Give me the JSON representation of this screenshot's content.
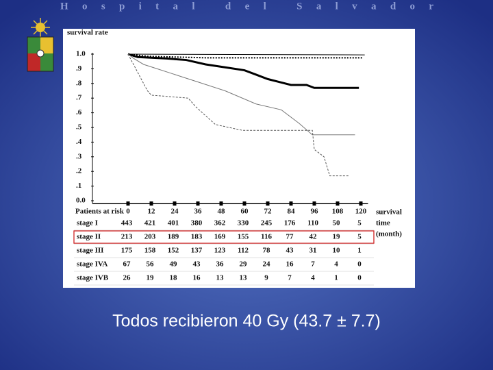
{
  "header": {
    "title": "Hospital del Salvador"
  },
  "chart_data": {
    "type": "line",
    "ylabel": "survival rate",
    "xlabel_lines": [
      "survival",
      "time",
      "(month)"
    ],
    "xlim": [
      0,
      123
    ],
    "ylim": [
      0,
      1
    ],
    "xticks": [
      0,
      12,
      24,
      36,
      48,
      60,
      72,
      84,
      96,
      108,
      120
    ],
    "yticks": [
      {
        "value": 0,
        "label": "0.0"
      },
      {
        "value": 0.1,
        "label": ".1"
      },
      {
        "value": 0.2,
        "label": ".2"
      },
      {
        "value": 0.3,
        "label": ".3"
      },
      {
        "value": 0.4,
        "label": ".4"
      },
      {
        "value": 0.5,
        "label": ".5"
      },
      {
        "value": 0.6,
        "label": ".6"
      },
      {
        "value": 0.7,
        "label": ".7"
      },
      {
        "value": 0.8,
        "label": ".8"
      },
      {
        "value": 0.9,
        "label": ".9"
      },
      {
        "value": 1,
        "label": "1.0"
      }
    ],
    "series": [
      {
        "color": "#000000",
        "style": "solid",
        "width": 1,
        "x": [
          0,
          122
        ],
        "values": [
          1,
          0.995
        ]
      },
      {
        "color": "#000000",
        "style": "dotted",
        "width": 2,
        "x": [
          0,
          10,
          40,
          121
        ],
        "values": [
          1,
          0.985,
          0.975,
          0.975
        ]
      },
      {
        "color": "#000000",
        "style": "solid",
        "width": 3,
        "x": [
          0,
          5,
          20,
          30,
          40,
          50,
          60,
          66,
          72,
          78,
          84,
          92,
          96,
          119
        ],
        "values": [
          1,
          0.98,
          0.97,
          0.96,
          0.93,
          0.91,
          0.89,
          0.86,
          0.83,
          0.81,
          0.79,
          0.79,
          0.77,
          0.77
        ]
      },
      {
        "color": "#777777",
        "style": "solid",
        "width": 1,
        "x": [
          0,
          3,
          8,
          15,
          22,
          29,
          36,
          50,
          66,
          79,
          88,
          95,
          117
        ],
        "values": [
          1,
          0.97,
          0.93,
          0.9,
          0.87,
          0.84,
          0.81,
          0.75,
          0.66,
          0.62,
          0.53,
          0.45,
          0.45
        ]
      },
      {
        "color": "#555555",
        "style": "dashed",
        "width": 1,
        "x": [
          0,
          6,
          10,
          12,
          31,
          35,
          40,
          45,
          59,
          95,
          96,
          101,
          104,
          114
        ],
        "values": [
          1,
          0.85,
          0.75,
          0.72,
          0.7,
          0.64,
          0.58,
          0.52,
          0.48,
          0.48,
          0.35,
          0.3,
          0.17,
          0.17
        ]
      }
    ]
  },
  "risk_table": {
    "title": "Patients at risk",
    "highlight_row": 1,
    "rows": [
      {
        "label": "stage I",
        "counts": [
          443,
          421,
          401,
          380,
          362,
          330,
          245,
          176,
          110,
          50,
          5
        ]
      },
      {
        "label": "stage II",
        "counts": [
          213,
          203,
          189,
          183,
          169,
          155,
          116,
          77,
          42,
          19,
          5
        ]
      },
      {
        "label": "stage III",
        "counts": [
          175,
          158,
          152,
          137,
          123,
          112,
          78,
          43,
          31,
          10,
          1
        ]
      },
      {
        "label": "stage IVA",
        "counts": [
          67,
          56,
          49,
          43,
          36,
          29,
          24,
          16,
          7,
          4,
          0
        ]
      },
      {
        "label": "stage IVB",
        "counts": [
          26,
          19,
          18,
          16,
          13,
          13,
          9,
          7,
          4,
          1,
          0
        ]
      }
    ]
  },
  "caption": "Todos recibieron 40 Gy (43.7 ± 7.7)"
}
